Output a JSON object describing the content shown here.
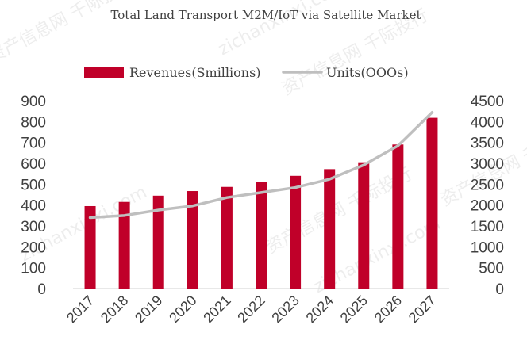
{
  "chart_data": {
    "type": "bar",
    "title": "Total Land Transport  M2M/IoT via Satellite Market",
    "categories": [
      "2017",
      "2018",
      "2019",
      "2020",
      "2021",
      "2022",
      "2023",
      "2024",
      "2025",
      "2026",
      "2027"
    ],
    "series": [
      {
        "name": "Revenues(Smillions)",
        "type": "bar",
        "axis": "left",
        "color": "#c00029",
        "values": [
          395,
          415,
          445,
          467,
          487,
          510,
          540,
          572,
          605,
          690,
          818
        ]
      },
      {
        "name": "Units(OOOs)",
        "type": "line",
        "axis": "right",
        "color": "#bfbfbf",
        "values": [
          1700,
          1750,
          1880,
          1980,
          2180,
          2300,
          2420,
          2620,
          2960,
          3420,
          4220
        ]
      }
    ],
    "y_left": {
      "min": 0,
      "max": 900,
      "step": 100,
      "tick_labels": [
        "0",
        "100",
        "200",
        "300",
        "400",
        "500",
        "600",
        "700",
        "800",
        "900"
      ]
    },
    "y_right": {
      "min": 0,
      "max": 4500,
      "step": 500,
      "tick_labels": [
        "0",
        "500",
        "1000",
        "1500",
        "2000",
        "2500",
        "3000",
        "3500",
        "4000",
        "4500"
      ]
    },
    "legend_position": "top",
    "grid": false,
    "watermark": [
      "资产信息网 千际投行",
      "zichanxinxi.com"
    ]
  }
}
